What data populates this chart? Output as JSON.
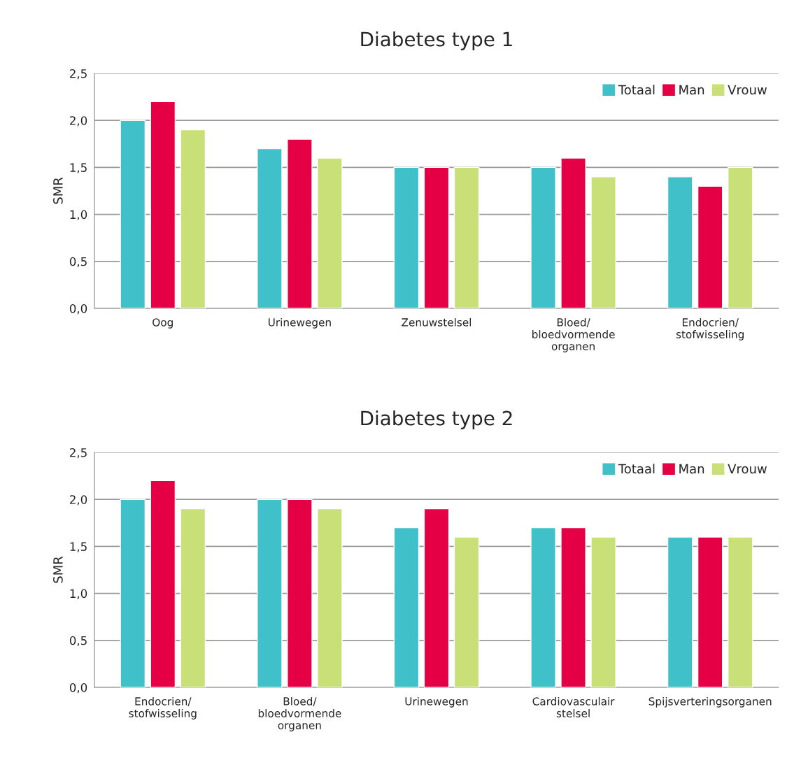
{
  "chart_data": [
    {
      "type": "bar",
      "title": "Diabetes type 1",
      "ylabel": "SMR",
      "categories": [
        "Oog",
        "Urinewegen",
        "Zenuwstelsel",
        "Bloed/\nbloedvormende\norganen",
        "Endocrien/\nstofwisseling"
      ],
      "series": [
        {
          "name": "Totaal",
          "color": "#40c0c8",
          "values": [
            2.0,
            1.7,
            1.5,
            1.5,
            1.4
          ]
        },
        {
          "name": "Man",
          "color": "#e50046",
          "values": [
            2.2,
            1.8,
            1.5,
            1.6,
            1.3
          ]
        },
        {
          "name": "Vrouw",
          "color": "#c9df78",
          "values": [
            1.9,
            1.6,
            1.5,
            1.4,
            1.5
          ]
        }
      ],
      "ylim": [
        0,
        2.5
      ],
      "yticks": [
        {
          "value": 0,
          "label": "0,0"
        },
        {
          "value": 0.5,
          "label": "0,5"
        },
        {
          "value": 1.0,
          "label": "1,0"
        },
        {
          "value": 1.5,
          "label": "1,5"
        },
        {
          "value": 2.0,
          "label": "2,0"
        },
        {
          "value": 2.5,
          "label": "2,5"
        }
      ],
      "grid": "y",
      "legend": "top right"
    },
    {
      "type": "bar",
      "title": "Diabetes type 2",
      "ylabel": "SMR",
      "categories": [
        "Endocrien/\nstofwisseling",
        "Bloed/\nbloedvormende\norganen",
        "Urinewegen",
        "Cardiovasculair\nstelsel",
        "Spijsverteringsorganen"
      ],
      "series": [
        {
          "name": "Totaal",
          "color": "#40c0c8",
          "values": [
            2.0,
            2.0,
            1.7,
            1.7,
            1.6
          ]
        },
        {
          "name": "Man",
          "color": "#e50046",
          "values": [
            2.2,
            2.0,
            1.9,
            1.7,
            1.6
          ]
        },
        {
          "name": "Vrouw",
          "color": "#c9df78",
          "values": [
            1.9,
            1.9,
            1.6,
            1.6,
            1.6
          ]
        }
      ],
      "ylim": [
        0,
        2.5
      ],
      "yticks": [
        {
          "value": 0,
          "label": "0,0"
        },
        {
          "value": 0.5,
          "label": "0,5"
        },
        {
          "value": 1.0,
          "label": "1,0"
        },
        {
          "value": 1.5,
          "label": "1,5"
        },
        {
          "value": 2.0,
          "label": "2,0"
        },
        {
          "value": 2.5,
          "label": "2,5"
        }
      ],
      "grid": "y",
      "legend": "top right"
    }
  ]
}
